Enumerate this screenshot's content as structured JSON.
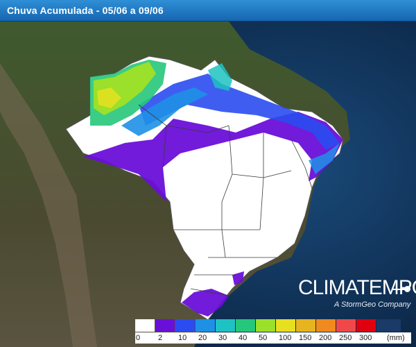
{
  "header": {
    "title": "Chuva Acumulada - 05/06 a 09/06"
  },
  "brand": {
    "name": "CLIMATEMPO",
    "tagline": "A StormGeo Company"
  },
  "legend": {
    "unit": "(mm)",
    "ticks": [
      "0",
      "2",
      "10",
      "20",
      "30",
      "40",
      "50",
      "100",
      "150",
      "200",
      "250",
      "300"
    ],
    "colors": [
      "#ffffff",
      "#6a0fd8",
      "#2a4cf0",
      "#1e90e6",
      "#1ec2c2",
      "#26c77a",
      "#9be02a",
      "#e6e01e",
      "#e6b41e",
      "#f08a1e",
      "#f04848",
      "#e00010"
    ]
  },
  "map": {
    "region": "Brazil",
    "ocean_color": "#0d2b52",
    "land_color": "#3d4a2c",
    "country_fill": "#ffffff",
    "border_color": "#3a3a3a"
  }
}
